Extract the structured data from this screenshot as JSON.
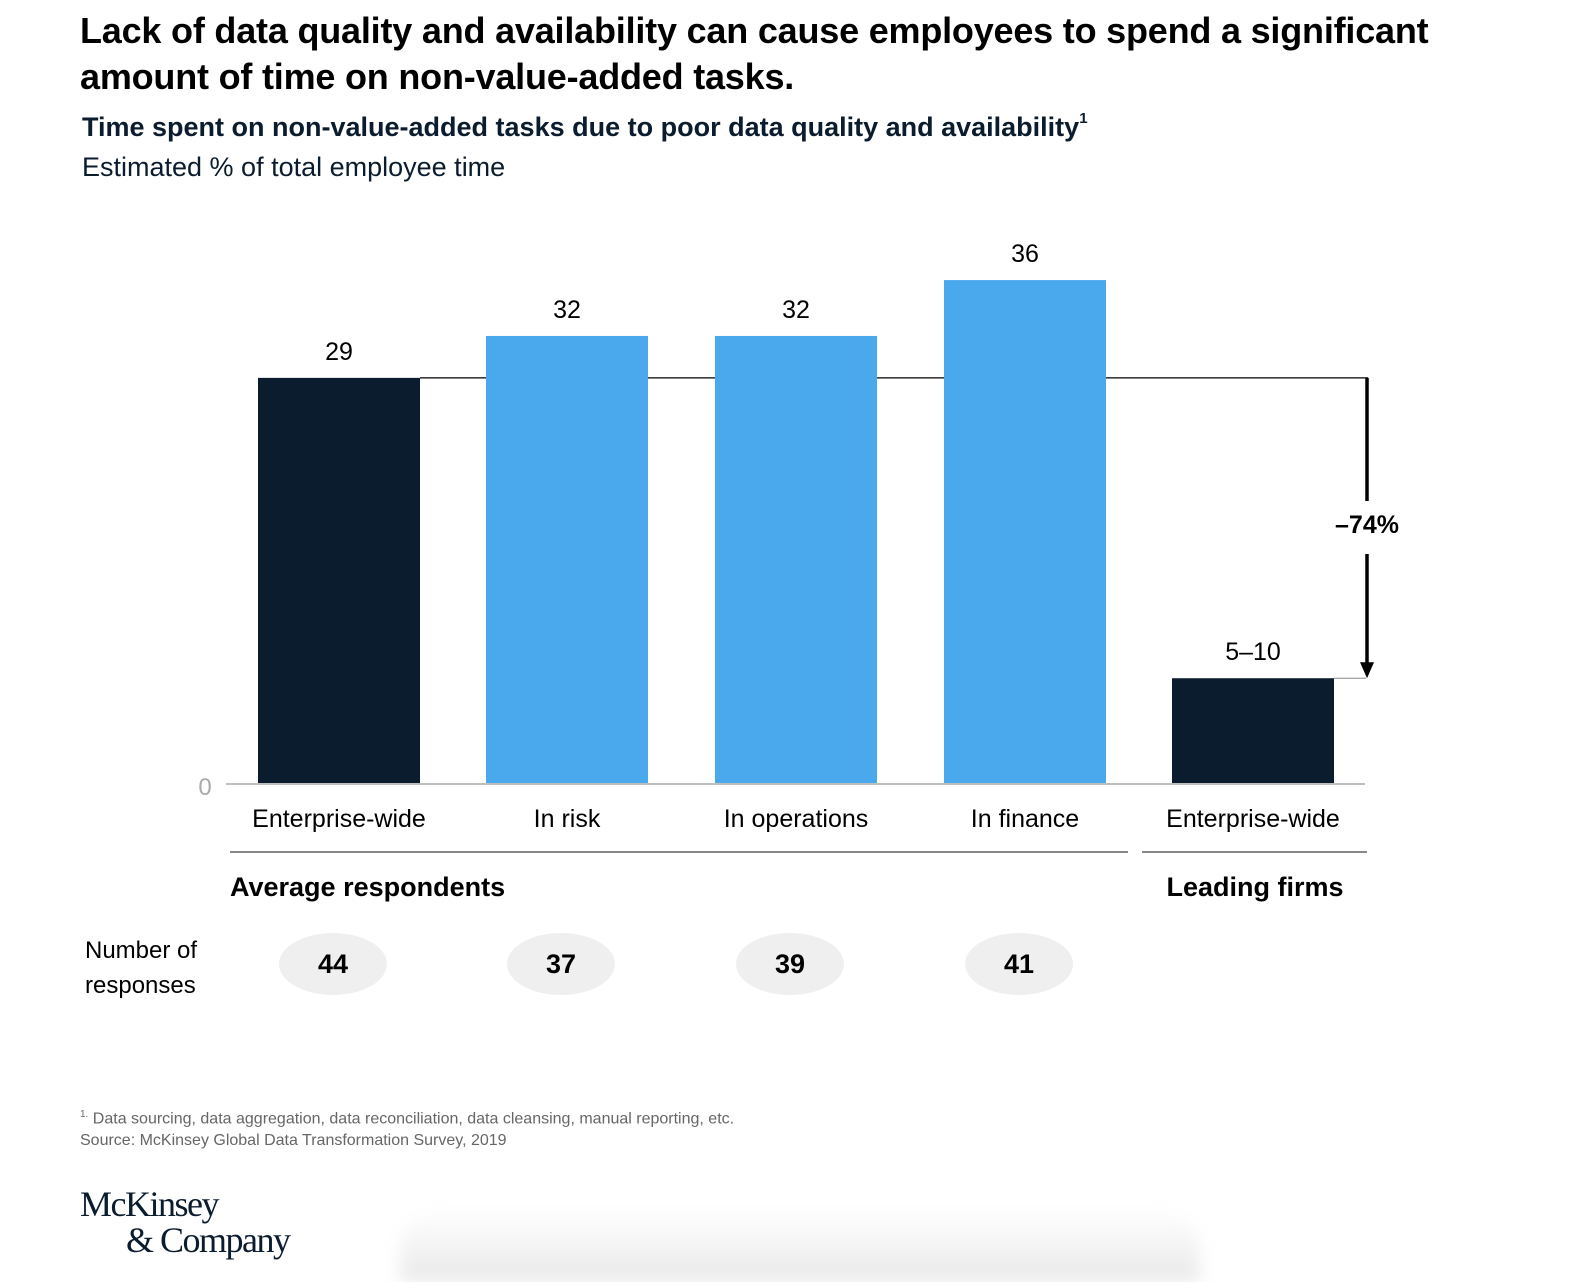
{
  "header": {
    "title": "Lack of data quality and availability can cause employees to spend a significant amount of time on non-value-added tasks.",
    "subtitle": "Time spent on non-value-added tasks due to poor data quality and availability",
    "subtitle_footnote_marker": "1",
    "unit_label": "Estimated % of total employee time"
  },
  "chart_data": {
    "type": "bar",
    "title": "Time spent on non-value-added tasks due to poor data quality and availability",
    "ylabel": "Estimated % of total employee time",
    "xlabel": "",
    "ylim": [
      0,
      40
    ],
    "y_ticks": [
      "0"
    ],
    "grid": false,
    "categories": [
      "Enterprise-wide",
      "In risk",
      "In operations",
      "In finance",
      "Enterprise-wide"
    ],
    "values": [
      29,
      32,
      32,
      36,
      7.5
    ],
    "value_labels": [
      "29",
      "32",
      "32",
      "36",
      "5–10"
    ],
    "bar_colors": [
      "#0b1c2e",
      "#4aa8ec",
      "#4aa8ec",
      "#4aa8ec",
      "#0b1c2e"
    ],
    "groups": [
      {
        "label": "Average respondents",
        "category_indices": [
          0,
          1,
          2,
          3
        ]
      },
      {
        "label": "Leading firms",
        "category_indices": [
          4
        ]
      }
    ],
    "annotation": {
      "text": "–74%",
      "from_value": 29,
      "to_value": 7.5
    },
    "responses_label": "Number of responses",
    "responses_label_lines": [
      "Number of",
      "responses"
    ],
    "responses": [
      "44",
      "37",
      "39",
      "41"
    ]
  },
  "footer": {
    "footnote_marker": "1.",
    "footnote": "Data sourcing, data aggregation, data reconciliation, data cleansing, manual reporting, etc.",
    "source": "Source: McKinsey Global Data Transformation Survey, 2019",
    "logo_line1": "McKinsey",
    "logo_line2": "& Company"
  },
  "colors": {
    "dark_bar": "#0b1c2e",
    "light_bar": "#4aa8ec",
    "pill": "#efefef",
    "axis": "#aaaaaa"
  }
}
